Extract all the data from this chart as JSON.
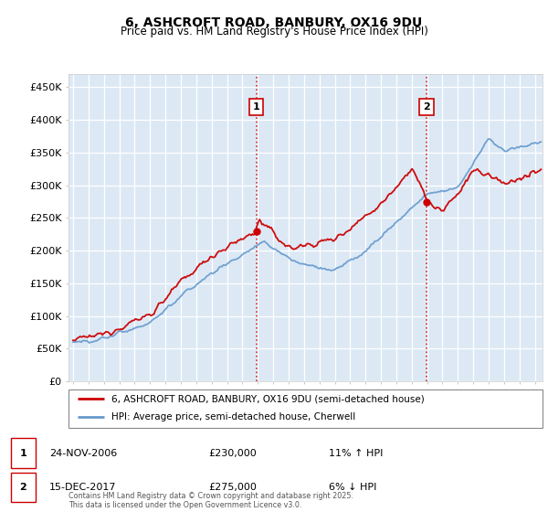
{
  "title": "6, ASHCROFT ROAD, BANBURY, OX16 9DU",
  "subtitle": "Price paid vs. HM Land Registry's House Price Index (HPI)",
  "background_color": "#dce9f5",
  "plot_bg_color": "#dce9f5",
  "ylim": [
    0,
    470000
  ],
  "yticks": [
    0,
    50000,
    100000,
    150000,
    200000,
    250000,
    300000,
    350000,
    400000,
    450000
  ],
  "ytick_labels": [
    "£0",
    "£50K",
    "£100K",
    "£150K",
    "£200K",
    "£250K",
    "£300K",
    "£350K",
    "£400K",
    "£450K"
  ],
  "legend_line1": "6, ASHCROFT ROAD, BANBURY, OX16 9DU (semi-detached house)",
  "legend_line2": "HPI: Average price, semi-detached house, Cherwell",
  "annotation1_label": "1",
  "annotation1_date": "24-NOV-2006",
  "annotation1_price": "£230,000",
  "annotation1_hpi": "11% ↑ HPI",
  "annotation2_label": "2",
  "annotation2_date": "15-DEC-2017",
  "annotation2_price": "£275,000",
  "annotation2_hpi": "6% ↓ HPI",
  "footer": "Contains HM Land Registry data © Crown copyright and database right 2025.\nThis data is licensed under the Open Government Licence v3.0.",
  "red_color": "#cc0000",
  "blue_color": "#6699cc",
  "marker1_x": 2006.9,
  "marker1_y": 230000,
  "marker2_x": 2017.96,
  "marker2_y": 275000,
  "vline1_x": 2006.9,
  "vline2_x": 2017.96,
  "xlim_left": 1994.7,
  "xlim_right": 2025.5
}
